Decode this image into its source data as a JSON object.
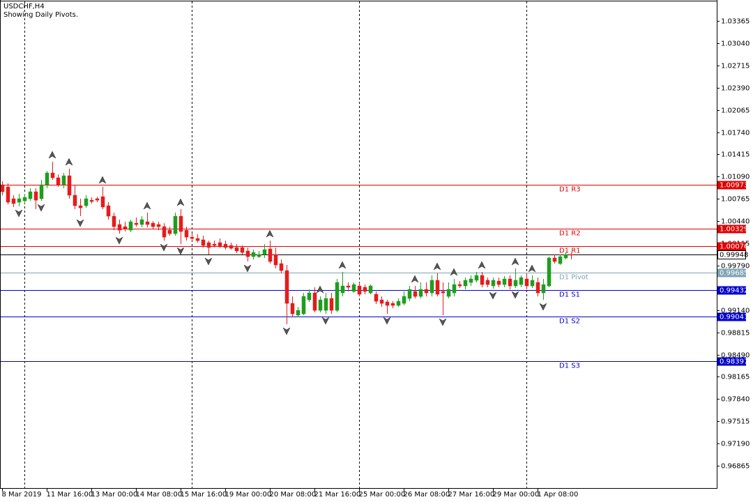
{
  "chart_data": {
    "type": "candlestick",
    "title": "USDCHF,H4",
    "subtitle": "Showing Daily Pivots.",
    "up_color": "#1e9e1e",
    "down_color": "#e41c1c",
    "xlim": [
      -0.375,
      128.125
    ],
    "xticks": [
      {
        "value": 0,
        "label": "8 Mar 2019"
      },
      {
        "value": 8,
        "label": "11 Mar 16:00"
      },
      {
        "value": 16,
        "label": "13 Mar 00:00"
      },
      {
        "value": 24,
        "label": "14 Mar 08:00"
      },
      {
        "value": 32,
        "label": "15 Mar 16:00"
      },
      {
        "value": 40,
        "label": "19 Mar 00:00"
      },
      {
        "value": 48,
        "label": "20 Mar 08:00"
      },
      {
        "value": 56,
        "label": "21 Mar 16:00"
      },
      {
        "value": 64,
        "label": "25 Mar 00:00"
      },
      {
        "value": 72,
        "label": "26 Mar 08:00"
      },
      {
        "value": 80,
        "label": "27 Mar 16:00"
      },
      {
        "value": 88,
        "label": "29 Mar 00:00"
      },
      {
        "value": 96,
        "label": "1 Apr 08:00"
      }
    ],
    "week_separators": [
      4,
      34,
      64,
      94
    ],
    "ylim": [
      0.96539,
      1.03671
    ],
    "yticks": [
      1.03365,
      {
        "value": 1.0304,
        "label": "1.03040"
      },
      1.02715,
      {
        "value": 1.0239,
        "label": "1.02390"
      },
      1.02065,
      {
        "value": 1.0174,
        "label": "1.01740"
      },
      1.01415,
      {
        "value": 1.0109,
        "label": "1.01090"
      },
      1.00765,
      {
        "value": 1.0044,
        "label": "1.00440"
      },
      1.00115,
      {
        "value": 0.9979,
        "label": "0.99790"
      },
      {
        "value": 0.9914,
        "label": "0.99140"
      },
      0.98815,
      {
        "value": 0.9849,
        "label": "0.98490"
      },
      0.98165,
      {
        "value": 0.9784,
        "label": "0.97840"
      },
      0.97515,
      {
        "value": 0.9719,
        "label": "0.97190"
      },
      0.96865
    ],
    "candles": {
      "open": [
        1.00971,
        1.0094,
        1.00767,
        1.00716,
        1.00736,
        1.00767,
        1.00869,
        1.00767,
        1.00971,
        1.01144,
        1.01073,
        1.00971,
        1.01103,
        1.00818,
        1.00665,
        1.00665,
        1.00746,
        1.00767,
        1.00797,
        1.00665,
        1.00512,
        1.0039,
        1.00359,
        1.00308,
        1.0041,
        1.0039,
        1.00431,
        1.0041,
        1.0039,
        1.00359,
        1.00308,
        1.00257,
        1.00512,
        1.00308,
        1.00206,
        1.00186,
        1.00166,
        1.00125,
        1.00104,
        1.00125,
        1.00104,
        1.00084,
        1.00054,
        1.00054,
        1.00003,
        0.99921,
        0.99921,
        0.99952,
        1.00033,
        0.99952,
        0.99819,
        0.99717,
        0.99238,
        0.99065,
        0.99085,
        0.99289,
        0.99391,
        0.99136,
        0.99136,
        0.9931,
        0.99136,
        0.99391,
        0.99493,
        0.99412,
        0.99493,
        0.99473,
        0.99391,
        0.99371,
        0.99289,
        0.99259,
        0.99238,
        0.99208,
        0.99238,
        0.9931,
        0.99412,
        0.9934,
        0.99442,
        0.99391,
        0.99575,
        0.99412,
        0.9934,
        0.99391,
        0.99513,
        0.99493,
        0.99544,
        0.99575,
        0.99646,
        0.99575,
        0.99493,
        0.99564,
        0.99513,
        0.99595,
        0.99493,
        0.99513,
        0.99595,
        0.99493,
        0.99544,
        0.99391,
        0.99493,
        0.99901,
        0.99819,
        0.99901,
        0.99952
      ],
      "high": [
        1.01022,
        1.00991,
        1.00818,
        1.00838,
        1.00838,
        1.0092,
        1.0092,
        1.01042,
        1.01174,
        1.01307,
        1.01123,
        1.01144,
        1.01205,
        1.00971,
        1.00767,
        1.00818,
        1.00787,
        1.00797,
        1.0094,
        1.00716,
        1.00563,
        1.00461,
        1.00431,
        1.00461,
        1.00492,
        1.00512,
        1.00563,
        1.00441,
        1.00431,
        1.0041,
        1.00359,
        1.00563,
        1.00614,
        1.00359,
        1.00257,
        1.00247,
        1.00227,
        1.00155,
        1.00155,
        1.00186,
        1.00155,
        1.00125,
        1.00104,
        1.00084,
        1.00054,
        1.00023,
        1.00003,
        1.00104,
        1.00155,
        1.00054,
        0.9988,
        0.99799,
        0.9934,
        0.99187,
        0.99391,
        0.99442,
        0.99473,
        0.9934,
        0.99391,
        0.99391,
        0.99595,
        0.99697,
        0.99544,
        0.99544,
        0.99544,
        0.99513,
        0.99513,
        0.99412,
        0.9934,
        0.99289,
        0.99269,
        0.9931,
        0.99412,
        0.99493,
        0.99493,
        0.99544,
        0.99544,
        0.99646,
        0.99677,
        0.99544,
        0.99544,
        0.99595,
        0.99564,
        0.99615,
        0.99646,
        0.99697,
        0.99697,
        0.99615,
        0.99615,
        0.99615,
        0.99636,
        0.99646,
        0.99748,
        0.99646,
        0.99677,
        0.99646,
        0.99615,
        0.99595,
        0.99921,
        0.99952,
        0.99952,
        0.99982,
        0.99982
      ],
      "low": [
        1.00818,
        1.00685,
        1.00645,
        1.00655,
        1.00696,
        1.00736,
        1.00614,
        1.00736,
        1.0092,
        1.01042,
        1.0094,
        1.0092,
        1.00767,
        1.00614,
        1.00512,
        1.00634,
        1.00696,
        1.00716,
        1.00614,
        1.00461,
        1.00308,
        1.00257,
        1.00288,
        1.00278,
        1.00359,
        1.00349,
        1.00349,
        1.00329,
        1.00308,
        1.00155,
        1.00227,
        1.00227,
        1.00104,
        1.00155,
        1.00155,
        1.00125,
        1.00054,
        0.99952,
        1.00054,
        1.00043,
        1.00023,
        1.00023,
        0.99972,
        0.99952,
        0.9985,
        0.9988,
        0.99901,
        0.99901,
        0.99819,
        0.99748,
        0.99677,
        0.98933,
        0.99035,
        0.99035,
        0.99065,
        0.99259,
        0.99106,
        0.99106,
        0.99085,
        0.99085,
        0.99106,
        0.9934,
        0.99412,
        0.99391,
        0.9934,
        0.99371,
        0.99371,
        0.99228,
        0.99187,
        0.99085,
        0.99167,
        0.99187,
        0.99208,
        0.99269,
        0.9931,
        0.9931,
        0.9934,
        0.9934,
        0.9934,
        0.99065,
        0.9931,
        0.9934,
        0.99463,
        0.99442,
        0.99493,
        0.99544,
        0.99473,
        0.99473,
        0.99452,
        0.99473,
        0.99473,
        0.99442,
        0.99463,
        0.99473,
        0.99442,
        0.99463,
        0.9934,
        0.99289,
        0.99473,
        0.99819,
        0.99799,
        0.9988,
        0.9988
      ],
      "close": [
        1.00869,
        1.00716,
        1.00696,
        1.00767,
        1.00787,
        1.00869,
        1.00746,
        1.00971,
        1.01144,
        1.01073,
        1.00971,
        1.01103,
        1.00818,
        1.00665,
        1.00634,
        1.00767,
        1.00726,
        1.00746,
        1.00645,
        1.00512,
        1.00359,
        1.00308,
        1.00329,
        1.00431,
        1.0039,
        1.00461,
        1.0039,
        1.00359,
        1.00359,
        1.00206,
        1.00257,
        1.00512,
        1.00288,
        1.00206,
        1.00186,
        1.00155,
        1.00084,
        1.00054,
        1.00084,
        1.00074,
        1.00054,
        1.00043,
        1.00003,
        0.99982,
        0.99921,
        0.99982,
        0.99952,
        1.00023,
        0.9985,
        0.99799,
        0.99717,
        0.99238,
        0.99085,
        0.99136,
        0.9934,
        0.99391,
        0.99136,
        0.99289,
        0.9931,
        0.99136,
        0.99544,
        0.99493,
        0.99473,
        0.99513,
        0.99371,
        0.99412,
        0.99493,
        0.99269,
        0.99238,
        0.99208,
        0.99208,
        0.99269,
        0.9934,
        0.99442,
        0.9934,
        0.99442,
        0.99391,
        0.99575,
        0.99371,
        0.99391,
        0.99442,
        0.99513,
        0.99493,
        0.99575,
        0.99595,
        0.99646,
        0.99513,
        0.99513,
        0.99575,
        0.99513,
        0.99595,
        0.99493,
        0.99575,
        0.99615,
        0.99493,
        0.99575,
        0.99391,
        0.99513,
        0.99901,
        0.9985,
        0.99921,
        0.99952,
        0.99948
      ]
    },
    "fractals": {
      "up": [
        9,
        12,
        18,
        26,
        32,
        48,
        57,
        61,
        74,
        78,
        81,
        86,
        92,
        95
      ],
      "down": [
        3,
        7,
        14,
        21,
        29,
        32,
        37,
        44,
        51,
        58,
        69,
        79,
        88,
        92,
        97
      ]
    },
    "pivots": [
      {
        "name": "D1 R3",
        "value": 1.00973,
        "color": "#e00000"
      },
      {
        "name": "D1 R2",
        "value": 1.00329,
        "color": "#e00000"
      },
      {
        "name": "D1 R1",
        "value": 1.00076,
        "color": "#e00000"
      },
      {
        "name": "D1 Pivot",
        "value": 0.99685,
        "color": "#7ea4b4"
      },
      {
        "name": "D1 S1",
        "value": 0.99432,
        "color": "#0000cc"
      },
      {
        "name": "D1 S2",
        "value": 0.99041,
        "color": "#0000cc"
      },
      {
        "name": "D1 S3",
        "value": 0.98397,
        "color": "#0000cc"
      }
    ]
  }
}
